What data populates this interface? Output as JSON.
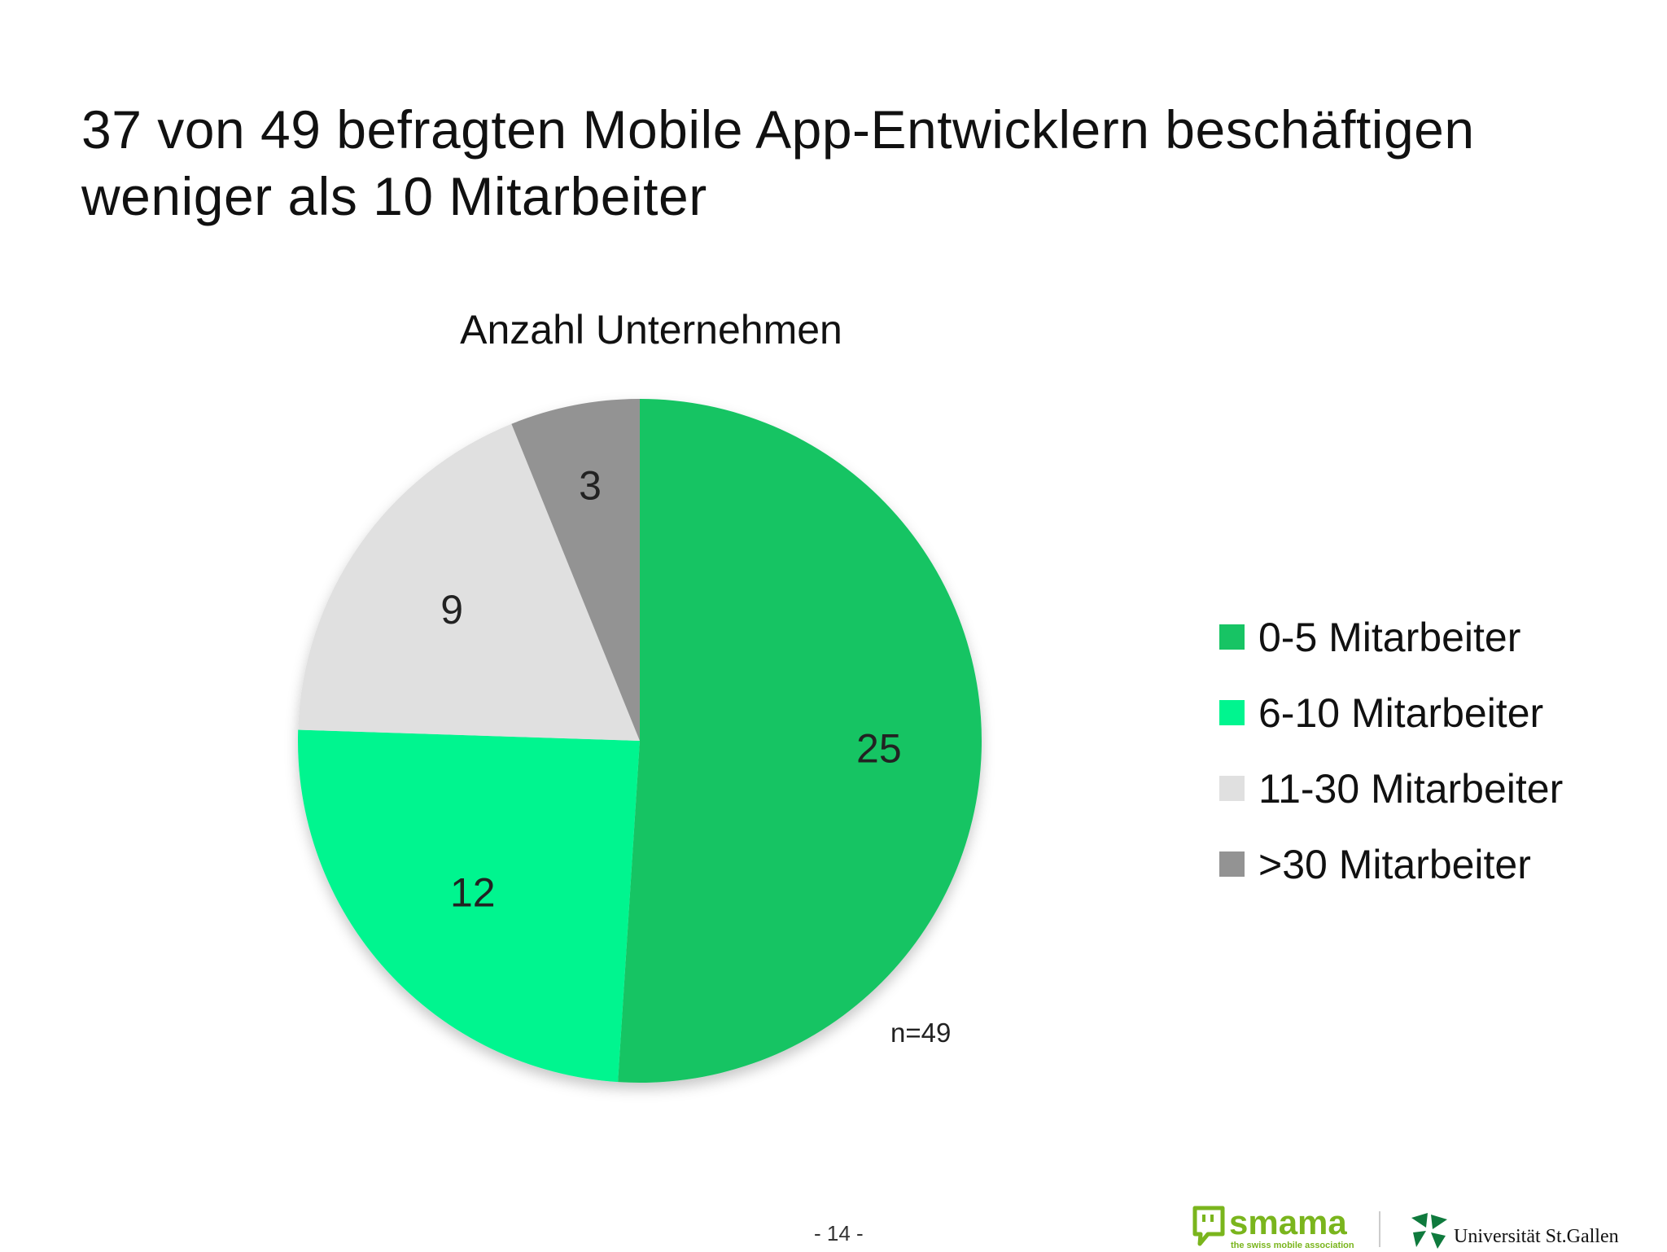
{
  "slide": {
    "title_line1": "37 von 49 befragten Mobile App-Entwicklern beschäftigen",
    "title_line2": "weniger als 10 Mitarbeiter",
    "page_number": "- 14 -",
    "sample_note": "n=49"
  },
  "chart_data": {
    "type": "pie",
    "title": "Anzahl Unternehmen",
    "categories": [
      "0-5 Mitarbeiter",
      "6-10 Mitarbeiter",
      "11-30 Mitarbeiter",
      ">30 Mitarbeiter"
    ],
    "values": [
      25,
      12,
      9,
      3
    ],
    "colors": [
      "#17c464",
      "#00f58f",
      "#e0e0e0",
      "#939393"
    ],
    "start_angle": "12 o'clock",
    "direction": "clockwise",
    "legend_position": "right",
    "data_labels": "values"
  },
  "logos": {
    "smama_wordmark": "smama",
    "smama_tagline": "the swiss mobile association",
    "smama_color": "#7ab51d",
    "unisg_wordmark": "Universität St.Gallen",
    "unisg_color": "#0f7a3d",
    "smama_icon": "speech-bubble-icon",
    "unisg_icon": "university-emblem-icon"
  }
}
